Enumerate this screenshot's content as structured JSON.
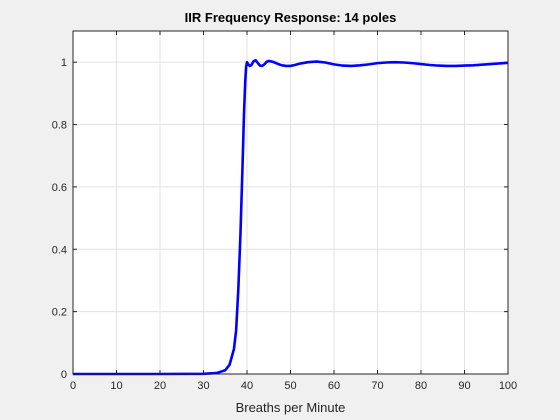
{
  "chart_data": {
    "type": "line",
    "title": "IIR Frequency Response: 14 poles",
    "xlabel": "Breaths per Minute",
    "ylabel": "",
    "xlim": [
      0,
      100
    ],
    "ylim": [
      0,
      1.1
    ],
    "xticks": [
      0,
      10,
      20,
      30,
      40,
      50,
      60,
      70,
      80,
      90,
      100
    ],
    "yticks": [
      0,
      0.2,
      0.4,
      0.6,
      0.8,
      1
    ],
    "xtick_labels": [
      "0",
      "10",
      "20",
      "30",
      "40",
      "50",
      "60",
      "70",
      "80",
      "90",
      "100"
    ],
    "ytick_labels": [
      "0",
      "0.2",
      "0.4",
      "0.6",
      "0.8",
      "1"
    ],
    "grid": true,
    "line_color": "#0000ff",
    "series": [
      {
        "x": [
          0,
          10,
          20,
          30,
          33,
          35,
          36,
          37,
          37.5,
          38,
          38.5,
          39,
          39.3,
          39.6,
          39.8,
          40,
          40.3,
          40.6,
          41,
          41.5,
          42,
          42.5,
          43,
          43.5,
          44,
          44.5,
          45,
          46,
          47,
          48,
          49,
          50,
          51,
          52,
          54,
          56,
          58,
          60,
          62,
          64,
          66,
          68,
          70,
          72,
          74,
          76,
          78,
          80,
          82,
          84,
          86,
          88,
          90,
          92,
          94,
          96,
          98,
          100
        ],
        "y": [
          0,
          0,
          0,
          0.0005,
          0.003,
          0.012,
          0.03,
          0.08,
          0.14,
          0.27,
          0.45,
          0.68,
          0.83,
          0.94,
          0.985,
          1.0,
          0.993,
          0.988,
          0.99,
          1.003,
          1.006,
          0.997,
          0.989,
          0.988,
          0.993,
          1.001,
          1.004,
          1.001,
          0.995,
          0.99,
          0.988,
          0.988,
          0.991,
          0.995,
          1.0,
          1.002,
          0.999,
          0.993,
          0.989,
          0.988,
          0.99,
          0.993,
          0.997,
          0.999,
          1.0,
          0.999,
          0.997,
          0.994,
          0.991,
          0.989,
          0.988,
          0.988,
          0.989,
          0.99,
          0.992,
          0.994,
          0.996,
          0.998
        ]
      }
    ]
  }
}
